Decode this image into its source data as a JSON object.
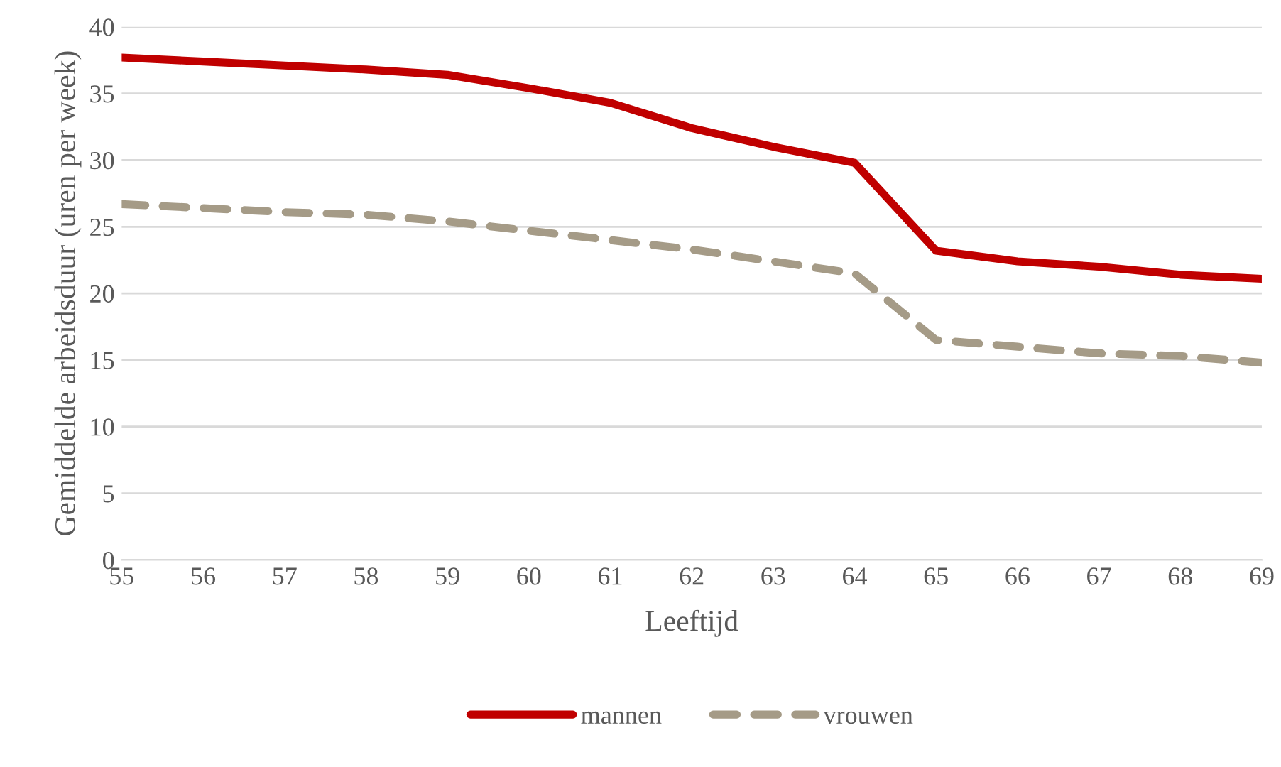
{
  "chart_data": {
    "type": "line",
    "xlabel": "Leeftijd",
    "ylabel": "Gemiddelde arbeidsduur (uren per week)",
    "x": [
      55,
      56,
      57,
      58,
      59,
      60,
      61,
      62,
      63,
      64,
      65,
      66,
      67,
      68,
      69
    ],
    "series": [
      {
        "name": "mannen",
        "color": "#c00000",
        "line_style": "solid",
        "values": [
          37.7,
          37.4,
          37.1,
          36.8,
          36.4,
          35.4,
          34.3,
          32.4,
          31.0,
          29.8,
          23.2,
          22.4,
          22.0,
          21.4,
          21.1
        ]
      },
      {
        "name": "vrouwen",
        "color": "#a59b87",
        "line_style": "dashed",
        "values": [
          26.7,
          26.4,
          26.1,
          25.9,
          25.4,
          24.7,
          24.0,
          23.3,
          22.4,
          21.5,
          16.5,
          16.0,
          15.5,
          15.3,
          14.8
        ]
      }
    ],
    "xlim": [
      55,
      69
    ],
    "xticks": [
      55,
      56,
      57,
      58,
      59,
      60,
      61,
      62,
      63,
      64,
      65,
      66,
      67,
      68,
      69
    ],
    "ylim": [
      0,
      40
    ],
    "yticks": [
      0,
      5,
      10,
      15,
      20,
      25,
      30,
      35,
      40
    ],
    "grid": "y",
    "legend": "bottom",
    "marker": "none"
  }
}
